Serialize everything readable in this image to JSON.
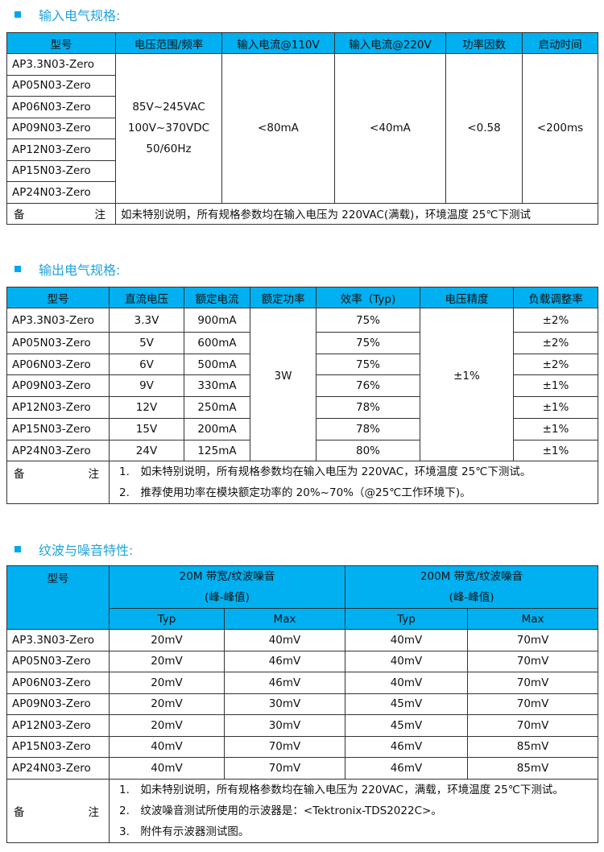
{
  "section1": {
    "title": "输入电气规格:",
    "headers": [
      "型号",
      "电压范围/频率",
      "输入电流@110V",
      "输入电流@220V",
      "功率因数",
      "启动时间"
    ],
    "models": [
      "AP3.3N03-Zero",
      "AP05N03-Zero",
      "AP06N03-Zero",
      "AP09N03-Zero",
      "AP12N03-Zero",
      "AP15N03-Zero",
      "AP24N03-Zero"
    ],
    "voltage": [
      "85V~245VAC",
      "100V~370VDC",
      "50/60Hz"
    ],
    "current110": "<80mA",
    "current220": "<40mA",
    "pf": "<0.58",
    "startup": "<200ms",
    "note_label": [
      "备",
      "注"
    ],
    "note": "如未特别说明，所有规格参数均在输入电压为 220VAC(满载)，环境温度 25℃下测试"
  },
  "section2": {
    "title": "输出电气规格:",
    "headers": [
      "型号",
      "直流电压",
      "额定电流",
      "额定功率",
      "效率（Typ)",
      "电压精度",
      "负载调整率"
    ],
    "rows": [
      [
        "AP3.3N03-Zero",
        "3.3V",
        "900mA",
        "75%",
        "±2%"
      ],
      [
        "AP05N03-Zero",
        "5V",
        "600mA",
        "75%",
        "±2%"
      ],
      [
        "AP06N03-Zero",
        "6V",
        "500mA",
        "75%",
        "±2%"
      ],
      [
        "AP09N03-Zero",
        "9V",
        "330mA",
        "76%",
        "±1%"
      ],
      [
        "AP12N03-Zero",
        "12V",
        "250mA",
        "78%",
        "±1%"
      ],
      [
        "AP15N03-Zero",
        "15V",
        "200mA",
        "78%",
        "±1%"
      ],
      [
        "AP24N03-Zero",
        "24V",
        "125mA",
        "80%",
        "±1%"
      ]
    ],
    "power": "3W",
    "accuracy": "±1%",
    "note_label": [
      "备",
      "注"
    ],
    "notes": [
      "1.　如未特别说明，所有规格参数均在输入电压为 220VAC，环境温度 25℃下测试。",
      "2.　推荐使用功率在模块额定功率的 20%~70%（@25℃工作环境下)。"
    ]
  },
  "section3": {
    "title": "纹波与噪音特性:",
    "headers": [
      "型号",
      "20M 带宽/纹波噪音",
      "(峰-峰值)",
      "200M 带宽/纹波噪音",
      "(峰-峰值)"
    ],
    "sub": [
      "Typ",
      "Max",
      "Typ",
      "Max"
    ],
    "rows": [
      [
        "AP3.3N03-Zero",
        "20mV",
        "40mV",
        "40mV",
        "70mV"
      ],
      [
        "AP05N03-Zero",
        "20mV",
        "46mV",
        "40mV",
        "70mV"
      ],
      [
        "AP06N03-Zero",
        "20mV",
        "46mV",
        "40mV",
        "70mV"
      ],
      [
        "AP09N03-Zero",
        "20mV",
        "30mV",
        "45mV",
        "70mV"
      ],
      [
        "AP12N03-Zero",
        "20mV",
        "30mV",
        "45mV",
        "70mV"
      ],
      [
        "AP15N03-Zero",
        "40mV",
        "70mV",
        "46mV",
        "85mV"
      ],
      [
        "AP24N03-Zero",
        "40mV",
        "70mV",
        "46mV",
        "85mV"
      ]
    ],
    "note_label": [
      "备",
      "注"
    ],
    "notes": [
      "1.　如未特别说明，所有规格参数均在输入电压为 220VAC，满载，环境温度 25℃下测试。",
      "2.　纹波噪音测试所使用的示波器是：<Tektronix-TDS2022C>。",
      "3.　附件有示波器测试图。"
    ]
  }
}
